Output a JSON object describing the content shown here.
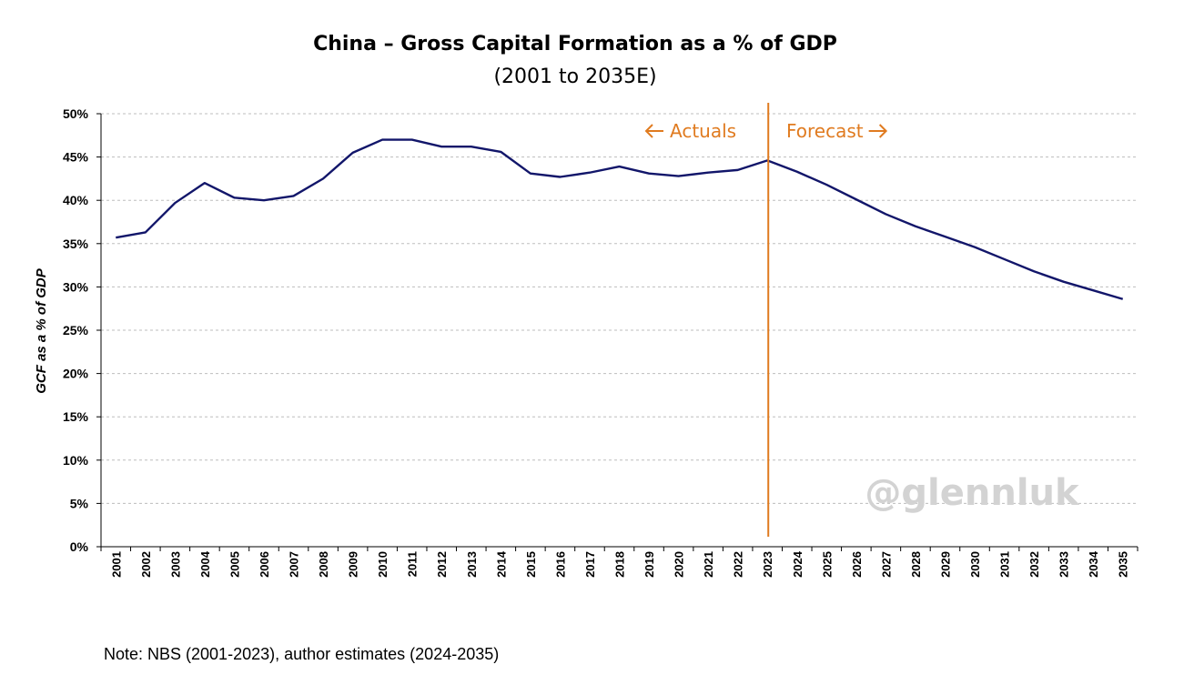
{
  "chart_data": {
    "type": "line",
    "title": "China – Gross Capital Formation as a % of GDP",
    "subtitle": "(2001 to 2035E)",
    "xlabel": "",
    "ylabel": "GCF as a % of GDP",
    "ylim": [
      0,
      50
    ],
    "y_ticks": [
      "0%",
      "5%",
      "10%",
      "15%",
      "20%",
      "25%",
      "30%",
      "35%",
      "40%",
      "45%",
      "50%"
    ],
    "grid": true,
    "categories": [
      "2001",
      "2002",
      "2003",
      "2004",
      "2005",
      "2006",
      "2007",
      "2008",
      "2009",
      "2010",
      "2011",
      "2012",
      "2013",
      "2014",
      "2015",
      "2016",
      "2017",
      "2018",
      "2019",
      "2020",
      "2021",
      "2022",
      "2023",
      "2024",
      "2025",
      "2026",
      "2027",
      "2028",
      "2029",
      "2030",
      "2031",
      "2032",
      "2033",
      "2034",
      "2035"
    ],
    "series": [
      {
        "values": [
          35.7,
          36.3,
          39.7,
          42.0,
          40.3,
          40.0,
          40.5,
          42.5,
          45.5,
          47.0,
          47.0,
          46.2,
          46.2,
          45.6,
          43.1,
          42.7,
          43.2,
          43.9,
          43.1,
          42.8,
          43.2,
          43.5,
          44.6,
          43.3,
          41.8,
          40.1,
          38.4,
          37.0,
          35.8,
          34.6,
          33.2,
          31.8,
          30.6,
          29.6,
          28.6
        ],
        "color": "#12166a"
      }
    ],
    "divider_after": "2023",
    "divider_color": "#e07b20",
    "annotations": {
      "left": "Actuals",
      "right": "Forecast"
    }
  },
  "watermark": "@glennluk",
  "note": "Note: NBS (2001-2023), author estimates (2024-2035)"
}
